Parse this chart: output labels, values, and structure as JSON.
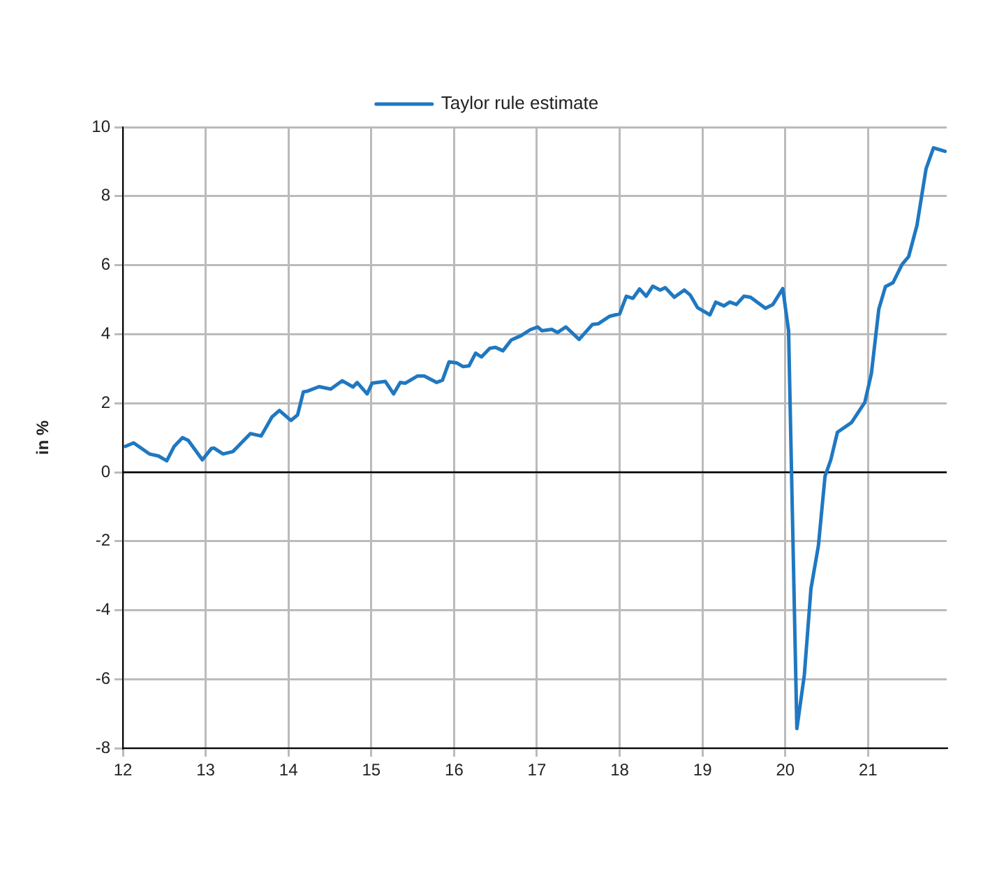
{
  "chart_data": {
    "type": "line",
    "ylabel": "in %",
    "legend": "top",
    "grid": true,
    "marker": "none",
    "line_style": "solid",
    "xlim": [
      12,
      21.95
    ],
    "xticks": [
      12,
      13,
      14,
      15,
      16,
      17,
      18,
      19,
      20,
      21
    ],
    "ylim": [
      -8,
      10
    ],
    "yticks": [
      -8,
      -6,
      -4,
      -2,
      0,
      2,
      4,
      6,
      8,
      10
    ],
    "ref_lines": [
      {
        "axis": "y",
        "value": 0,
        "color": "#000000"
      }
    ],
    "series": [
      {
        "name": "Taylor rule estimate",
        "color": "#1f78c1",
        "x": [
          12.03,
          12.13,
          12.32,
          12.43,
          12.53,
          12.62,
          12.72,
          12.79,
          12.96,
          13.07,
          13.1,
          13.21,
          13.33,
          13.54,
          13.67,
          13.8,
          13.89,
          14.03,
          14.11,
          14.18,
          14.23,
          14.37,
          14.51,
          14.65,
          14.78,
          14.83,
          14.95,
          15.01,
          15.17,
          15.27,
          15.35,
          15.41,
          15.56,
          15.64,
          15.79,
          15.86,
          15.94,
          16.03,
          16.11,
          16.18,
          16.26,
          16.33,
          16.43,
          16.5,
          16.59,
          16.69,
          16.81,
          16.92,
          17.01,
          17.06,
          17.18,
          17.25,
          17.35,
          17.51,
          17.67,
          17.74,
          17.88,
          18.0,
          18.08,
          18.16,
          18.24,
          18.32,
          18.4,
          18.49,
          18.55,
          18.66,
          18.78,
          18.85,
          18.94,
          19.09,
          19.16,
          19.26,
          19.33,
          19.41,
          19.5,
          19.58,
          19.76,
          19.85,
          19.97,
          20.04,
          20.14,
          20.23,
          20.31,
          20.4,
          20.48,
          20.55,
          20.63,
          20.8,
          20.96,
          21.04,
          21.13,
          21.21,
          21.3,
          21.41,
          21.49,
          21.59,
          21.7,
          21.79,
          21.93
        ],
        "values": [
          0.75,
          0.85,
          0.53,
          0.47,
          0.33,
          0.75,
          1.0,
          0.92,
          0.36,
          0.69,
          0.7,
          0.53,
          0.6,
          1.12,
          1.05,
          1.6,
          1.79,
          1.5,
          1.66,
          2.33,
          2.35,
          2.48,
          2.41,
          2.65,
          2.47,
          2.6,
          2.27,
          2.58,
          2.63,
          2.27,
          2.6,
          2.58,
          2.79,
          2.79,
          2.6,
          2.67,
          3.2,
          3.17,
          3.06,
          3.08,
          3.45,
          3.34,
          3.59,
          3.62,
          3.52,
          3.83,
          3.96,
          4.13,
          4.21,
          4.1,
          4.14,
          4.05,
          4.21,
          3.85,
          4.28,
          4.3,
          4.52,
          4.59,
          5.1,
          5.04,
          5.31,
          5.1,
          5.39,
          5.28,
          5.35,
          5.07,
          5.28,
          5.14,
          4.77,
          4.56,
          4.93,
          4.82,
          4.93,
          4.86,
          5.1,
          5.07,
          4.75,
          4.86,
          5.32,
          4.1,
          -7.43,
          -5.88,
          -3.38,
          -2.13,
          -0.12,
          0.36,
          1.16,
          1.44,
          2.02,
          2.86,
          4.73,
          5.38,
          5.49,
          6.02,
          6.25,
          7.15,
          8.79,
          9.4,
          9.3
        ]
      }
    ]
  }
}
